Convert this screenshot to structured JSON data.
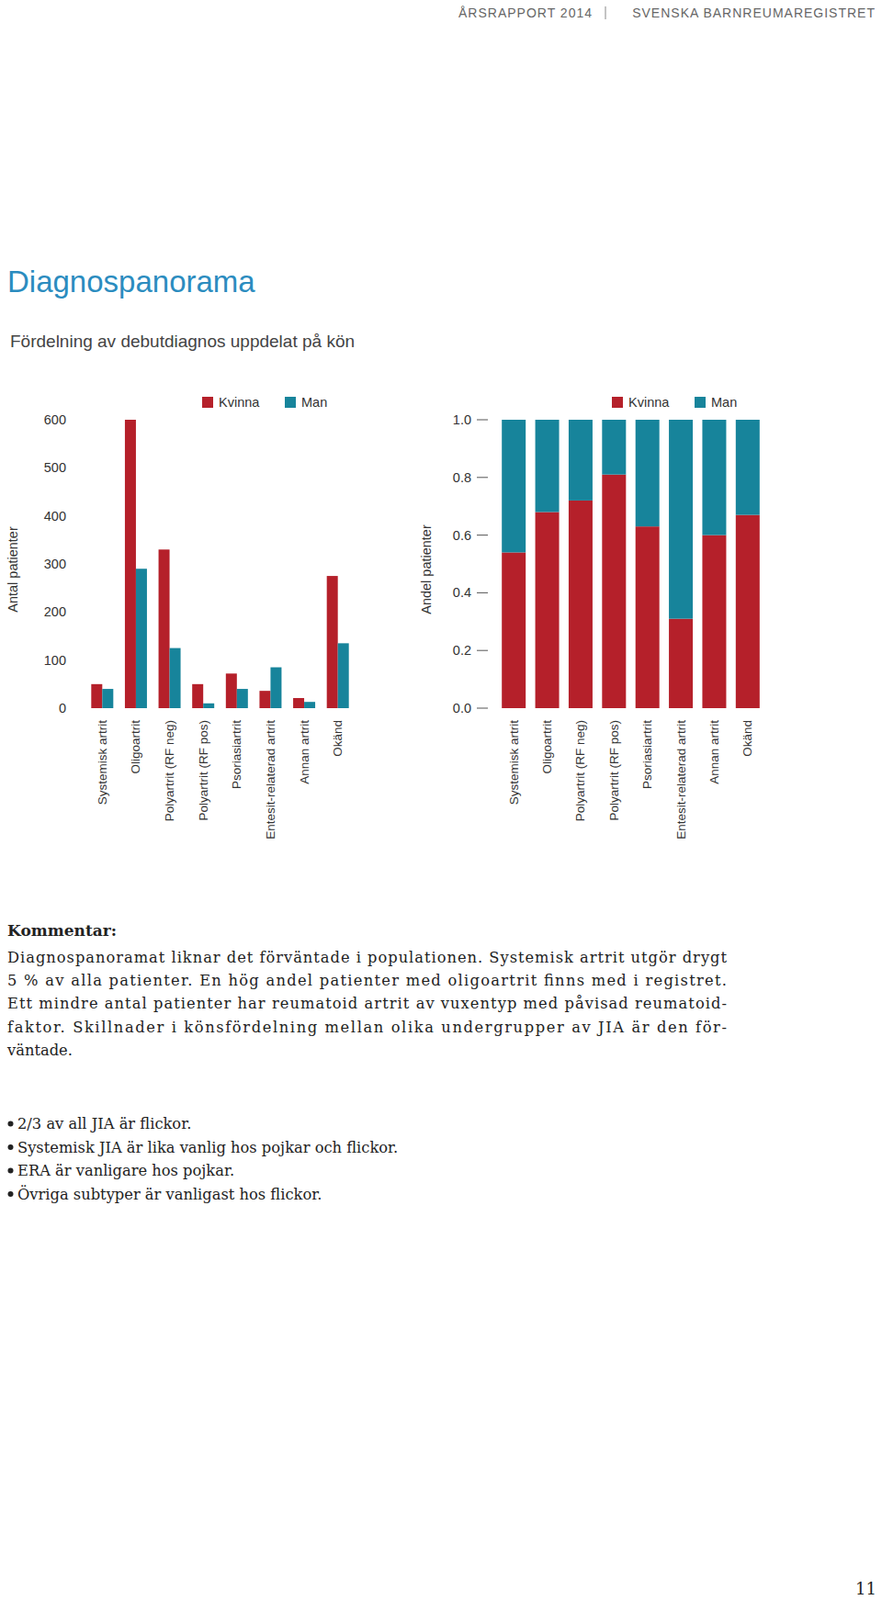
{
  "header": {
    "left": "ÅRSRAPPORT 2014",
    "right": "SVENSKA BARNREUMAREGISTRET"
  },
  "title": "Diagnospanorama",
  "subtitle": "Fördelning av debutdiagnos uppdelat på kön",
  "chart_data": [
    {
      "type": "bar",
      "y_label": "Antal patienter",
      "categories": [
        "Systemisk artrit",
        "Oligoartrit",
        "Polyartrit (RF neg)",
        "Polyartrit (RF pos)",
        "Psoriasiartrit",
        "Entesit-relaterad artrit",
        "Annan artrit",
        "Okänd"
      ],
      "series": [
        {
          "name": "Kvinna",
          "color": "#b5202a",
          "values": [
            50,
            600,
            330,
            50,
            72,
            36,
            21,
            275
          ]
        },
        {
          "name": "Man",
          "color": "#17849b",
          "values": [
            40,
            290,
            125,
            10,
            40,
            85,
            13,
            135
          ]
        }
      ],
      "ylim": [
        0,
        600
      ],
      "yticks": [
        0,
        100,
        200,
        300,
        400,
        500,
        600
      ],
      "grid": false,
      "legend": "top"
    },
    {
      "type": "bar",
      "stacked": true,
      "y_label": "Andel patienter",
      "categories": [
        "Systemisk artrit",
        "Oligoartrit",
        "Polyartrit (RF neg)",
        "Polyartrit (RF pos)",
        "Psoriasiartrit",
        "Entesit-relaterad artrit",
        "Annan artrit",
        "Okänd"
      ],
      "series": [
        {
          "name": "Kvinna",
          "color": "#b5202a",
          "values": [
            0.54,
            0.68,
            0.72,
            0.81,
            0.63,
            0.31,
            0.6,
            0.67
          ]
        },
        {
          "name": "Man",
          "color": "#17849b",
          "values": [
            0.46,
            0.32,
            0.28,
            0.19,
            0.37,
            0.69,
            0.4,
            0.33
          ]
        }
      ],
      "ylim": [
        0,
        1
      ],
      "yticks": [
        {
          "value": 0,
          "label": "0.0"
        },
        0.2,
        0.4,
        0.6,
        0.8,
        {
          "value": 1,
          "label": "1.0"
        }
      ],
      "grid": false,
      "legend": "top"
    }
  ],
  "comment": {
    "heading": "Kommentar:",
    "lines": [
      "Diagnospanoramat liknar det förväntade i populationen. Systemisk artrit utgör drygt",
      "5 % av alla patienter. En hög andel patienter med oligoartrit finns med i registret.",
      "Ett mindre antal patienter har reumatoid artrit av vuxentyp med påvisad reumatoid-",
      "faktor. Skillnader i könsfördelning mellan olika undergrupper av JIA är den för-",
      "väntade."
    ],
    "bullets": [
      "2/3 av all JIA är flickor.",
      "Systemisk JIA är lika vanlig hos pojkar och flickor.",
      "ERA är vanligare hos pojkar.",
      "Övriga subtyper är vanligast hos flickor."
    ]
  },
  "page_number": "11"
}
